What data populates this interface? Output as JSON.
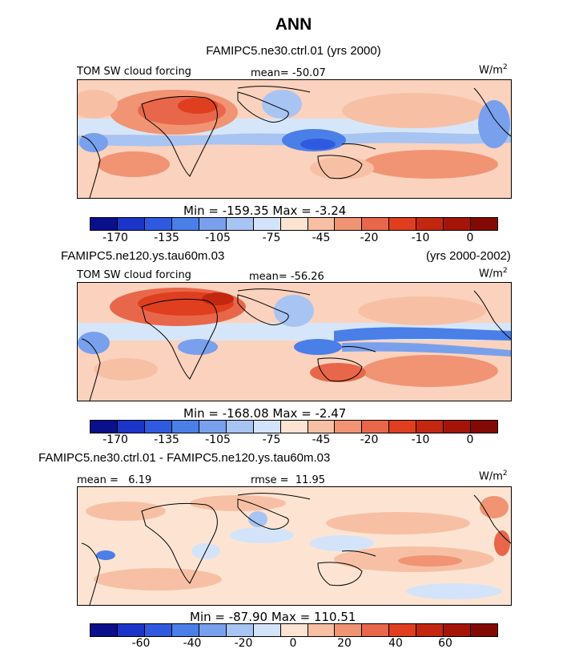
{
  "title": "ANN",
  "panels": [
    {
      "header_left": "FAMIPC5.ne30.ctrl.01 (yrs 2000)",
      "header_right": "",
      "field_label": "TOM SW cloud forcing",
      "stat_label": "mean= -50.07",
      "units": "W/m",
      "units_sup": "2",
      "minmax": "Min = -159.35  Max =  -3.24",
      "colorbar_ticks": [
        "-170",
        "-135",
        "-105",
        "-75",
        "-45",
        "-20",
        "-10",
        "0"
      ]
    },
    {
      "header_left": "FAMIPC5.ne120.ys.tau60m.03",
      "header_right": "(yrs 2000-2002)",
      "field_label": "TOM SW cloud forcing",
      "stat_label": "mean= -56.26",
      "units": "W/m",
      "units_sup": "2",
      "minmax": "Min = -168.08  Max =  -2.47",
      "colorbar_ticks": [
        "-170",
        "-135",
        "-105",
        "-75",
        "-45",
        "-20",
        "-10",
        "0"
      ]
    },
    {
      "header_left": "FAMIPC5.ne30.ctrl.01 - FAMIPC5.ne120.ys.tau60m.03",
      "header_right": "",
      "field_label": "mean =   6.19",
      "stat_label": "rmse =  11.95",
      "units": "W/m",
      "units_sup": "2",
      "minmax": "Min = -87.90  Max = 110.51",
      "colorbar_ticks": [
        "-60",
        "-40",
        "-20",
        "0",
        "20",
        "40",
        "60"
      ]
    }
  ],
  "colors": {
    "colorbar_sequence": [
      "#0a0f8c",
      "#1a35c8",
      "#2f5ae0",
      "#4a7fe8",
      "#79a0ec",
      "#a8c4f2",
      "#d3e4fa",
      "#fde4d2",
      "#f7c0a4",
      "#f09474",
      "#e8674a",
      "#df3f1e",
      "#c32710",
      "#a51507",
      "#830a04"
    ],
    "coast": "#000000"
  }
}
